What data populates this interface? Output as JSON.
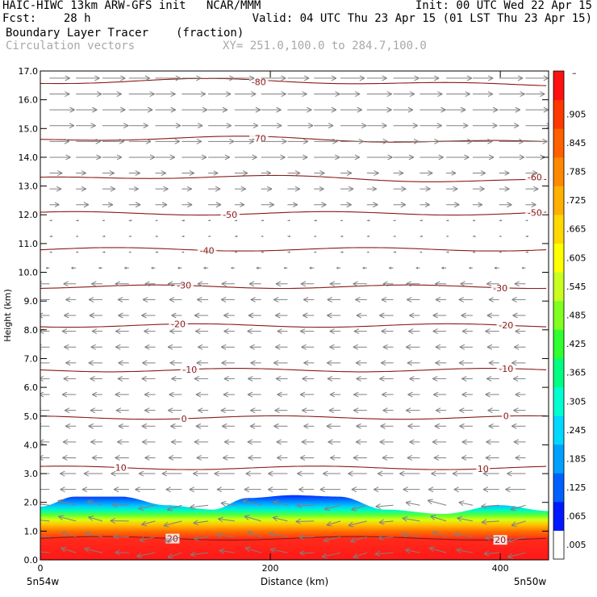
{
  "header": {
    "line1_left": "HAIC-HIWC 13km ARW-GFS init   NCAR/MMM",
    "line1_right": "Init: 00 UTC Wed 22 Apr 15",
    "line2_left": "Fcst:    28 h",
    "line2_right": "Valid: 04 UTC Thu 23 Apr 15 (01 LST Thu 23 Apr 15)",
    "field_name": "Boundary Layer Tracer",
    "field_units": "(fraction)",
    "vector_label": "Circulation vectors",
    "xy_label": "XY= 251.0,100.0 to 284.7,100.0"
  },
  "chart_data": {
    "type": "cross-section",
    "ylabel": "Height (km)",
    "xlabel": "Distance (km)",
    "ylim": [
      0,
      17
    ],
    "xlim": [
      0,
      442
    ],
    "y_ticks": [
      "0.0",
      "1.0",
      "2.0",
      "3.0",
      "4.0",
      "5.0",
      "6.0",
      "7.0",
      "8.0",
      "9.0",
      "10.0",
      "11.0",
      "12.0",
      "13.0",
      "14.0",
      "15.0",
      "16.0",
      "17.0"
    ],
    "x_ticks": [
      0,
      200,
      400
    ],
    "x_tick_labels": [
      "0",
      "200",
      "400"
    ],
    "x_endpoints": [
      "5n54w",
      "5n50w"
    ],
    "colorbar": {
      "labels": [
        ".005",
        ".065",
        ".125",
        ".185",
        ".245",
        ".305",
        ".365",
        ".425",
        ".485",
        ".545",
        ".605",
        ".665",
        ".725",
        ".785",
        ".845",
        ".905"
      ],
      "top_label": "–",
      "colors": [
        "#ffffff",
        "#0018ff",
        "#0060ff",
        "#00a0ff",
        "#00d8ff",
        "#00ffd0",
        "#00ff80",
        "#30ff30",
        "#80ff20",
        "#c8ff20",
        "#ffff00",
        "#ffd800",
        "#ffb000",
        "#ff8800",
        "#ff6000",
        "#ff3800",
        "#ff1010"
      ]
    },
    "tracer_top_km": [
      [
        0,
        1.85
      ],
      [
        30,
        2.2
      ],
      [
        70,
        2.2
      ],
      [
        110,
        1.9
      ],
      [
        150,
        1.75
      ],
      [
        180,
        2.15
      ],
      [
        220,
        2.25
      ],
      [
        260,
        2.2
      ],
      [
        300,
        1.75
      ],
      [
        350,
        1.6
      ],
      [
        400,
        1.9
      ],
      [
        442,
        1.7
      ]
    ],
    "temperature_contours": [
      {
        "value": 20,
        "label": "20",
        "height_km": 0.75,
        "label_x_km": [
          115,
          400
        ]
      },
      {
        "value": 10,
        "label": "10",
        "height_km": 3.2,
        "label_x_km": [
          70,
          385
        ]
      },
      {
        "value": 0,
        "label": "0",
        "height_km": 4.95,
        "label_x_km": [
          125,
          405
        ]
      },
      {
        "value": -10,
        "label": "-10",
        "height_km": 6.6,
        "label_x_km": [
          130,
          405
        ]
      },
      {
        "value": -20,
        "label": "-20",
        "height_km": 8.15,
        "label_x_km": [
          120,
          405
        ]
      },
      {
        "value": -30,
        "label": "-30",
        "height_km": 9.5,
        "label_x_km": [
          125,
          400
        ]
      },
      {
        "value": -40,
        "label": "-40",
        "height_km": 10.8,
        "label_x_km": [
          145
        ]
      },
      {
        "value": -50,
        "label": "-50",
        "height_km": 12.05,
        "label_x_km": [
          165,
          430
        ]
      },
      {
        "value": -60,
        "label": "-60",
        "height_km": 13.25,
        "label_x_km": [
          430
        ]
      },
      {
        "value": -70,
        "label": "-70",
        "height_km": 14.6,
        "label_x_km": [
          190
        ]
      },
      {
        "value": -80,
        "label": "-80",
        "height_km": 16.6,
        "label_x_km": [
          190
        ]
      }
    ],
    "colors": {
      "contour": "#8b1a1a",
      "vector": "#808080",
      "header_gray": "#a8a8a8"
    }
  }
}
